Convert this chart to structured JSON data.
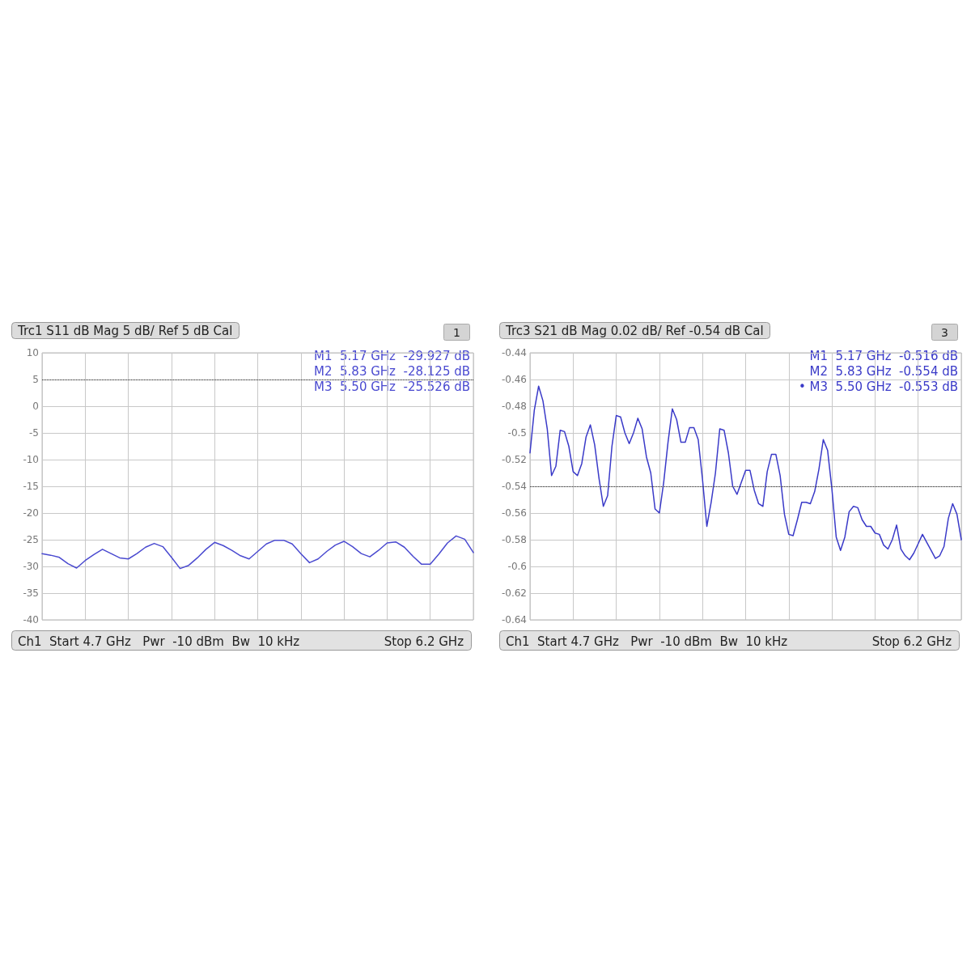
{
  "chart_data": [
    {
      "type": "line",
      "title": "Trc1 S11 dB Mag 5 dB/ Ref 5 dB Cal",
      "color": "#4a4ad0",
      "grid": true,
      "tick_labels": "y",
      "line_style": "solid",
      "marker": "none",
      "annotations": [
        "1",
        "M1  5.17 GHz  -29.927 dB",
        "M2  5.83 GHz  -28.125 dB",
        "M3  5.50 GHz  -25.526 dB",
        "Ch1  Start 4.7 GHz   Pwr  -10 dBm  Bw  10 kHz",
        "Stop 6.2 GHz"
      ],
      "categories": [
        null,
        null,
        null,
        null,
        null,
        null,
        null,
        null,
        null,
        null,
        null,
        null,
        null,
        null,
        null,
        null,
        null,
        null,
        null,
        null,
        null,
        null,
        null,
        null,
        null,
        null,
        null,
        null,
        null,
        null,
        null,
        null,
        null,
        null,
        null,
        null,
        null,
        null,
        null,
        null,
        null,
        null,
        null,
        null,
        null,
        null,
        null,
        null,
        null,
        null,
        null
      ],
      "ylim": [
        -40,
        10
      ],
      "yticks": [
        10,
        5,
        0,
        -5,
        -10,
        -15,
        -20,
        -25,
        -30,
        -35,
        -40
      ],
      "ref_lines": [
        {
          "axis": "y",
          "value": 5,
          "color": "#333333",
          "line_style": "dotted"
        }
      ],
      "values": [
        -27.6,
        -27.9,
        -28.3,
        -29.5,
        -30.3,
        -28.9,
        -27.8,
        -26.8,
        -27.6,
        -28.4,
        -28.6,
        -27.6,
        -26.4,
        -25.7,
        -26.3,
        -28.3,
        -30.4,
        -29.8,
        -28.4,
        -26.8,
        -25.5,
        -26.1,
        -27.0,
        -28.0,
        -28.6,
        -27.2,
        -25.8,
        -25.1,
        -25.1,
        -25.8,
        -27.6,
        -29.3,
        -28.6,
        -27.2,
        -26.0,
        -25.3,
        -26.3,
        -27.6,
        -28.2,
        -27.0,
        -25.6,
        -25.4,
        -26.4,
        -28.1,
        -29.6,
        -29.6,
        -27.7,
        -25.6,
        -24.3,
        -24.9,
        -27.4
      ]
    },
    {
      "type": "line",
      "title": "Trc3 S21 dB Mag 0.02 dB/ Ref -0.54 dB Cal",
      "color": "#3a3ac8",
      "grid": true,
      "tick_labels": "y",
      "line_style": "solid",
      "marker": "none",
      "annotations": [
        "3",
        "M1  5.17 GHz  -0.516 dB",
        "M2  5.83 GHz  -0.554 dB",
        "• M3  5.50 GHz  -0.553 dB",
        "Ch1  Start 4.7 GHz   Pwr  -10 dBm  Bw  10 kHz",
        "Stop 6.2 GHz"
      ],
      "categories": [
        null,
        null,
        null,
        null,
        null,
        null,
        null,
        null,
        null,
        null,
        null,
        null,
        null,
        null,
        null,
        null,
        null,
        null,
        null,
        null,
        null,
        null,
        null,
        null,
        null,
        null,
        null,
        null,
        null,
        null,
        null,
        null,
        null,
        null,
        null,
        null,
        null,
        null,
        null,
        null,
        null,
        null,
        null,
        null,
        null,
        null,
        null,
        null,
        null,
        null,
        null,
        null,
        null,
        null,
        null,
        null,
        null,
        null,
        null,
        null,
        null,
        null,
        null,
        null,
        null,
        null,
        null,
        null,
        null,
        null,
        null,
        null,
        null,
        null,
        null,
        null,
        null,
        null,
        null,
        null,
        null,
        null,
        null,
        null,
        null,
        null,
        null,
        null,
        null,
        null,
        null,
        null,
        null,
        null,
        null,
        null,
        null,
        null,
        null,
        null,
        null
      ],
      "ylim": [
        -0.64,
        -0.44
      ],
      "yticks": [
        -0.44,
        -0.46,
        -0.48,
        -0.5,
        -0.52,
        -0.54,
        -0.56,
        -0.58,
        -0.6,
        -0.62,
        -0.64
      ],
      "ref_lines": [
        {
          "axis": "y",
          "value": -0.54,
          "color": "#333333",
          "line_style": "dotted"
        }
      ],
      "values": [
        -0.515,
        -0.483,
        -0.465,
        -0.476,
        -0.497,
        -0.532,
        -0.525,
        -0.498,
        -0.499,
        -0.51,
        -0.529,
        -0.532,
        -0.523,
        -0.503,
        -0.494,
        -0.509,
        -0.534,
        -0.555,
        -0.547,
        -0.51,
        -0.487,
        -0.488,
        -0.5,
        -0.508,
        -0.5,
        -0.489,
        -0.497,
        -0.518,
        -0.53,
        -0.557,
        -0.56,
        -0.537,
        -0.507,
        -0.482,
        -0.49,
        -0.507,
        -0.507,
        -0.496,
        -0.496,
        -0.505,
        -0.535,
        -0.57,
        -0.552,
        -0.53,
        -0.497,
        -0.498,
        -0.515,
        -0.54,
        -0.546,
        -0.537,
        -0.528,
        -0.528,
        -0.543,
        -0.553,
        -0.555,
        -0.529,
        -0.516,
        -0.516,
        -0.532,
        -0.561,
        -0.576,
        -0.577,
        -0.565,
        -0.552,
        -0.552,
        -0.553,
        -0.544,
        -0.527,
        -0.505,
        -0.513,
        -0.542,
        -0.578,
        -0.588,
        -0.578,
        -0.559,
        -0.555,
        -0.556,
        -0.565,
        -0.57,
        -0.57,
        -0.575,
        -0.576,
        -0.584,
        -0.587,
        -0.58,
        -0.569,
        -0.587,
        -0.592,
        -0.595,
        -0.59,
        -0.583,
        -0.576,
        -0.582,
        -0.588,
        -0.594,
        -0.592,
        -0.585,
        -0.564,
        -0.553,
        -0.561,
        -0.58
      ]
    }
  ]
}
